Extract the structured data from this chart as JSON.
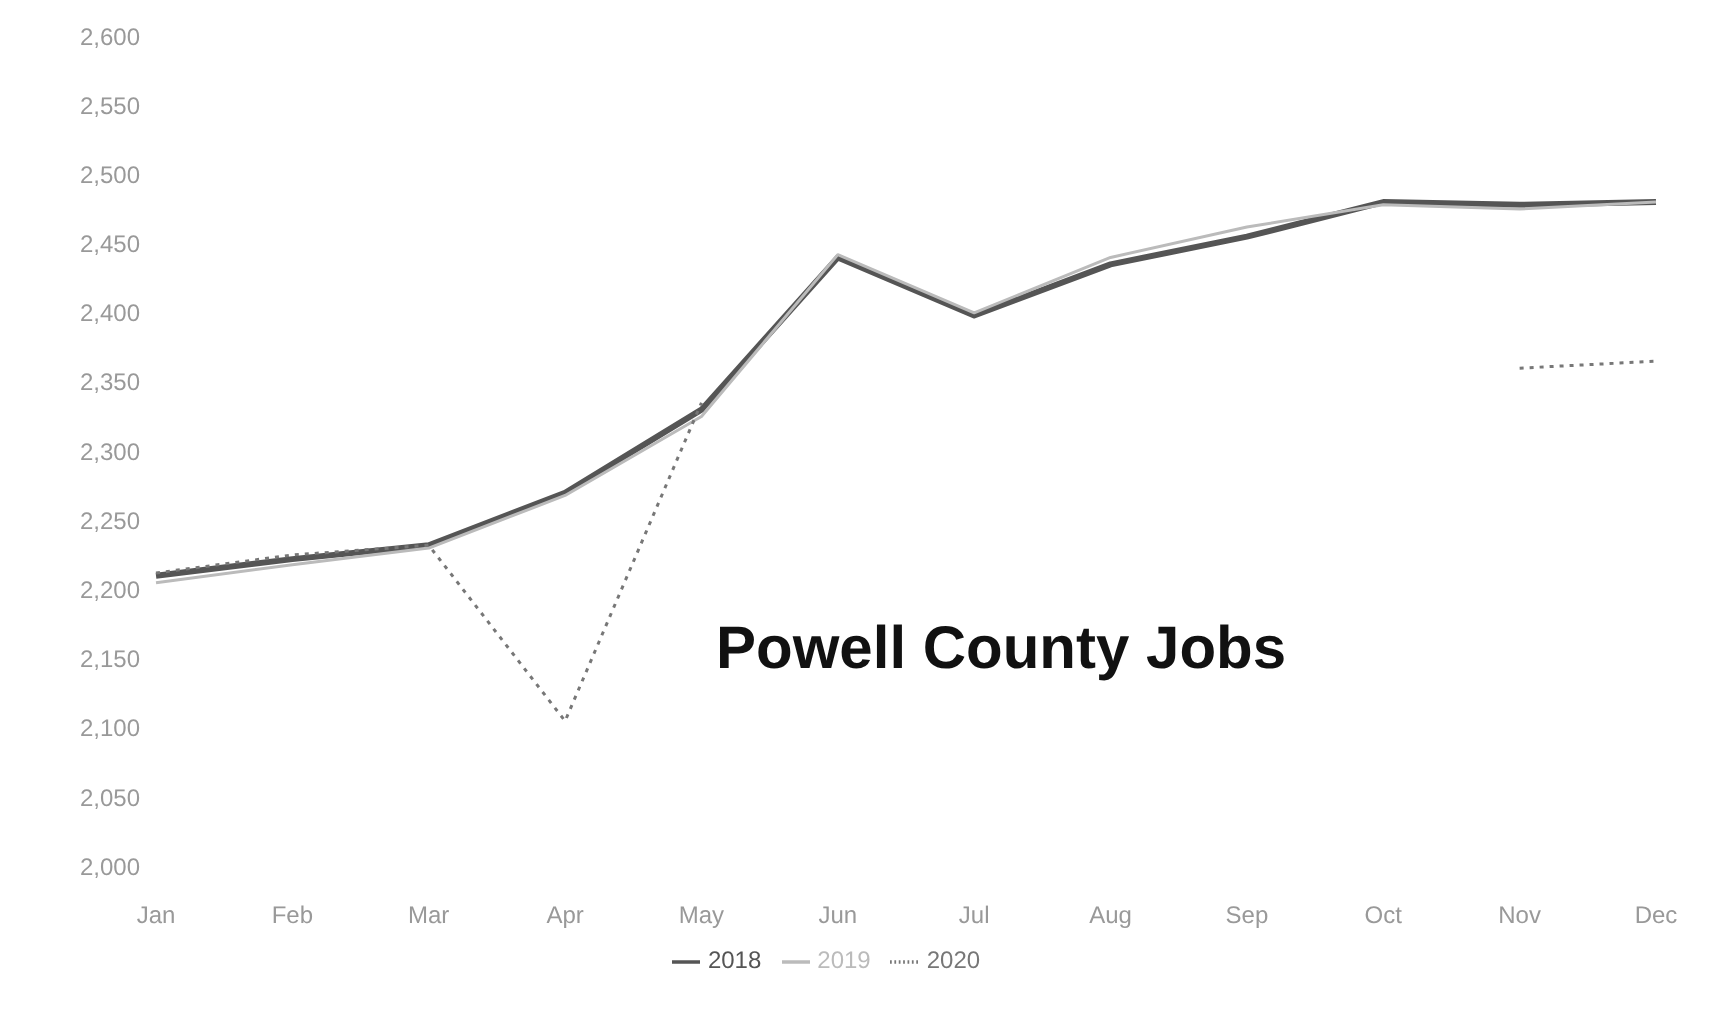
{
  "chart_data": {
    "type": "line",
    "title": "Powell County Jobs",
    "categories": [
      "Jan",
      "Feb",
      "Mar",
      "Apr",
      "May",
      "Jun",
      "Jul",
      "Aug",
      "Sep",
      "Oct",
      "Nov",
      "Dec"
    ],
    "series": [
      {
        "name": "2018",
        "color": "#555555",
        "line_style": "solid",
        "values": [
          2210,
          2222,
          2232,
          2270,
          2330,
          2440,
          2398,
          2435,
          2455,
          2480,
          2478,
          2480
        ]
      },
      {
        "name": "2019",
        "color": "#bbbbbb",
        "line_style": "solid",
        "values": [
          2205,
          2218,
          2230,
          2268,
          2325,
          2442,
          2400,
          2440,
          2462,
          2478,
          2475,
          2480
        ]
      },
      {
        "name": "2020",
        "color": "#777777",
        "line_style": "dotted",
        "values": [
          2212,
          2225,
          2232,
          2105,
          2335,
          null,
          null,
          null,
          null,
          null,
          2360,
          2365
        ]
      }
    ],
    "ylim": [
      2000,
      2600
    ],
    "yticks": [
      {
        "value": 2000,
        "label": "2,000"
      },
      {
        "value": 2050,
        "label": "2,050"
      },
      {
        "value": 2100,
        "label": "2,100"
      },
      {
        "value": 2150,
        "label": "2,150"
      },
      {
        "value": 2200,
        "label": "2,200"
      },
      {
        "value": 2250,
        "label": "2,250"
      },
      {
        "value": 2300,
        "label": "2,300"
      },
      {
        "value": 2350,
        "label": "2,350"
      },
      {
        "value": 2400,
        "label": "2,400"
      },
      {
        "value": 2450,
        "label": "2,450"
      },
      {
        "value": 2500,
        "label": "2,500"
      },
      {
        "value": 2550,
        "label": "2,550"
      },
      {
        "value": 2600,
        "label": "2,600"
      }
    ],
    "grid": false,
    "legend": "bottom",
    "marker": "none"
  }
}
